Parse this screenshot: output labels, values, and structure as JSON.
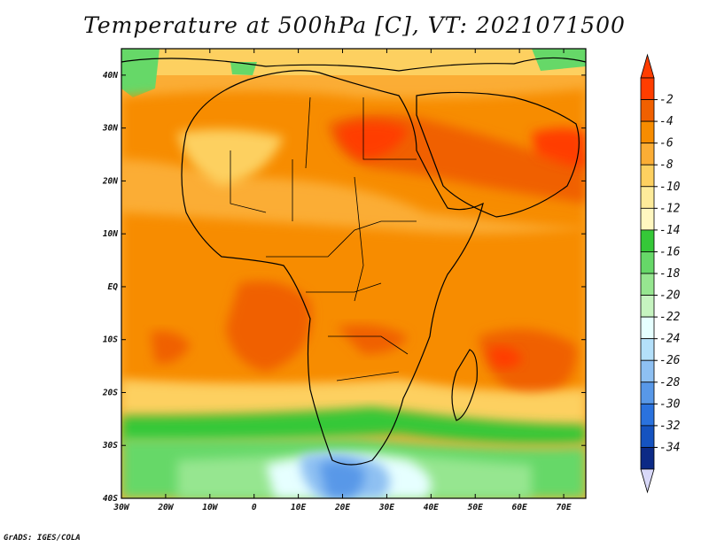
{
  "title": "Temperature at 500hPa [C], VT: 2021071500",
  "footer": "GrADS: IGES/COLA",
  "map": {
    "lon_range": [
      -30,
      75
    ],
    "lat_range": [
      -40,
      45
    ],
    "x_ticks": [
      {
        "value": -30,
        "label": "30W"
      },
      {
        "value": -20,
        "label": "20W"
      },
      {
        "value": -10,
        "label": "10W"
      },
      {
        "value": 0,
        "label": "0"
      },
      {
        "value": 10,
        "label": "10E"
      },
      {
        "value": 20,
        "label": "20E"
      },
      {
        "value": 30,
        "label": "30E"
      },
      {
        "value": 40,
        "label": "40E"
      },
      {
        "value": 50,
        "label": "50E"
      },
      {
        "value": 60,
        "label": "60E"
      },
      {
        "value": 70,
        "label": "70E"
      }
    ],
    "y_ticks": [
      {
        "value": 40,
        "label": "40N"
      },
      {
        "value": 30,
        "label": "30N"
      },
      {
        "value": 20,
        "label": "20N"
      },
      {
        "value": 10,
        "label": "10N"
      },
      {
        "value": 0,
        "label": "EQ"
      },
      {
        "value": -10,
        "label": "10S"
      },
      {
        "value": -20,
        "label": "20S"
      },
      {
        "value": -30,
        "label": "30S"
      },
      {
        "value": -40,
        "label": "40S"
      }
    ]
  },
  "colorbar": {
    "labels": [
      "-2",
      "-4",
      "-6",
      "-8",
      "-10",
      "-12",
      "-14",
      "-16",
      "-18",
      "-20",
      "-22",
      "-24",
      "-26",
      "-28",
      "-30",
      "-32",
      "-34"
    ],
    "colors": [
      "#ff3d00",
      "#f06000",
      "#f78c00",
      "#fbad35",
      "#fdd060",
      "#fdeb9a",
      "#fff7c0",
      "#35c838",
      "#66d868",
      "#96e690",
      "#c6f4c0",
      "#e6ffff",
      "#b4e0fa",
      "#8ec0f2",
      "#5898e8",
      "#2a72de",
      "#1553c0",
      "#0c2a86"
    ],
    "high_arrow_color": "#ff3d00",
    "low_arrow_color": "#d8d8f8"
  }
}
